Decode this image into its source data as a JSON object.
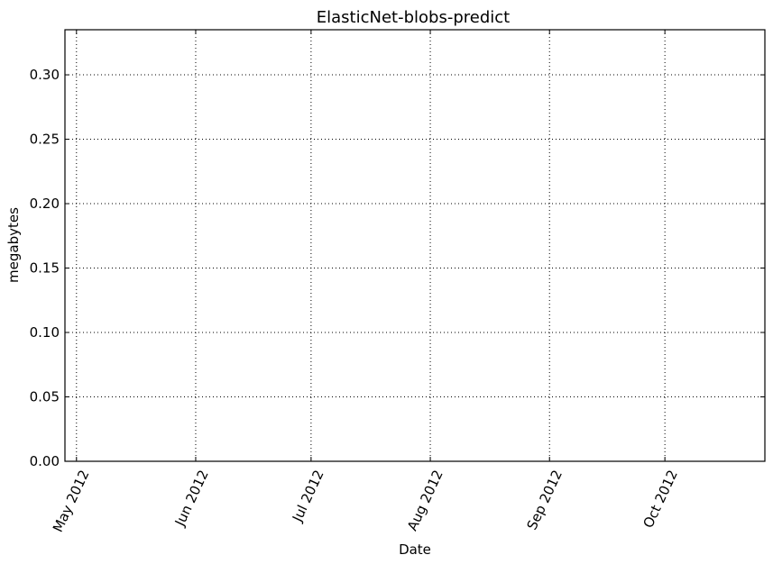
{
  "chart_data": {
    "type": "line",
    "title": "ElasticNet-blobs-predict",
    "xlabel": "Date",
    "ylabel": "megabytes",
    "x_ticks": [
      "May 2012",
      "Jun 2012",
      "Jul 2012",
      "Aug 2012",
      "Sep 2012",
      "Oct 2012"
    ],
    "x_tick_dates": [
      "2012-05-01",
      "2012-06-01",
      "2012-07-01",
      "2012-08-01",
      "2012-09-01",
      "2012-10-01"
    ],
    "xlim": [
      "2012-04-28",
      "2012-10-27"
    ],
    "y_ticks": [
      "0.00",
      "0.05",
      "0.10",
      "0.15",
      "0.20",
      "0.25",
      "0.30"
    ],
    "ylim": [
      0,
      0.335
    ],
    "grid": true,
    "series": [
      {
        "x": [],
        "values": []
      }
    ]
  }
}
